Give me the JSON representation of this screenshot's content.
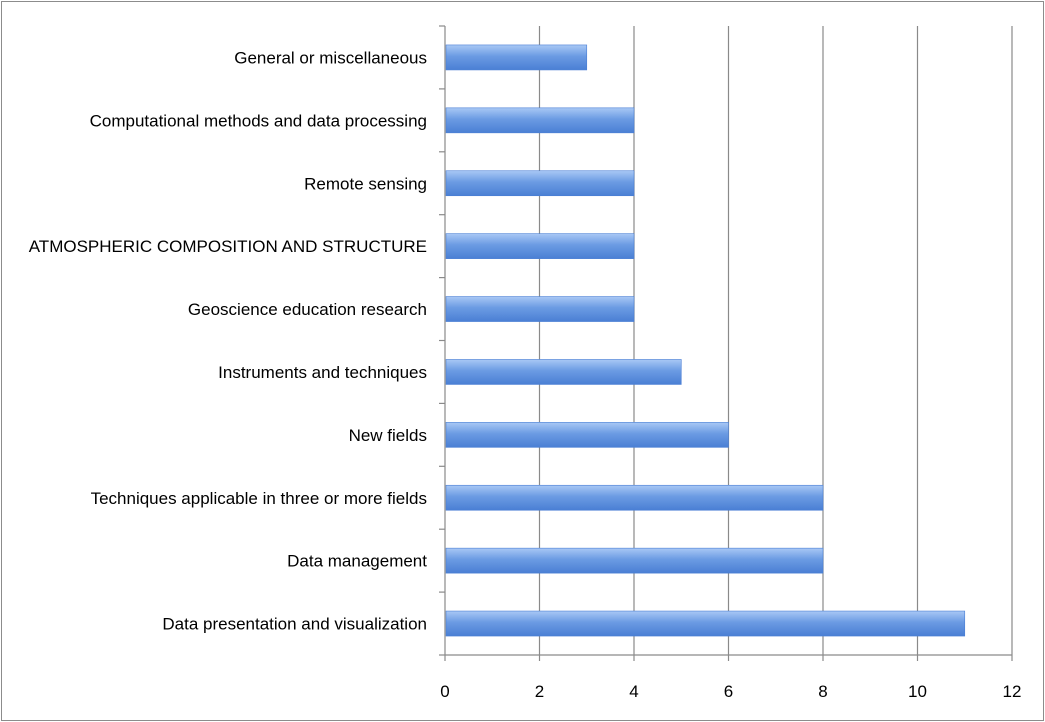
{
  "chart_data": {
    "type": "bar",
    "orientation": "horizontal",
    "categories": [
      "General or miscellaneous",
      "Computational methods and data processing",
      "Remote sensing",
      "ATMOSPHERIC COMPOSITION AND STRUCTURE",
      "Geoscience education research",
      "Instruments and techniques",
      "New fields",
      "Techniques applicable in three or more fields",
      "Data management",
      "Data presentation and visualization"
    ],
    "values": [
      3,
      4,
      4,
      4,
      4,
      5,
      6,
      8,
      8,
      11
    ],
    "title": "",
    "xlabel": "",
    "ylabel": "",
    "xlim": [
      0,
      12
    ],
    "x_ticks": [
      "0",
      "2",
      "4",
      "6",
      "8",
      "10",
      "12"
    ],
    "grid": "vertical",
    "legend": "none",
    "bar_color": "#6b9be3",
    "bar_color_light": "#a9c8f5",
    "bar_color_dark": "#4a7fd4"
  }
}
